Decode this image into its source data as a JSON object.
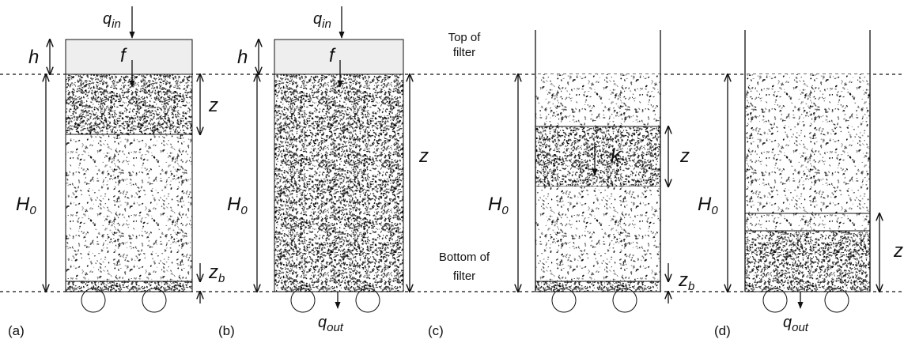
{
  "panels": [
    {
      "label": "(a)",
      "q_in": {
        "base": "q",
        "sub": "in"
      },
      "h": "h",
      "f": "f",
      "z": "z",
      "H0": {
        "base": "H",
        "sub": "0"
      },
      "z_b": {
        "base": "z",
        "sub": "b"
      }
    },
    {
      "label": "(b)",
      "q_in": {
        "base": "q",
        "sub": "in"
      },
      "h": "h",
      "f": "f",
      "z": "z",
      "H0": {
        "base": "H",
        "sub": "0"
      },
      "q_out": {
        "base": "q",
        "sub": "out"
      }
    },
    {
      "label": "(c)",
      "k": "k",
      "z": "z",
      "H0": {
        "base": "H",
        "sub": "0"
      },
      "z_b": {
        "base": "z",
        "sub": "b"
      }
    },
    {
      "label": "(d)",
      "z": "z",
      "H0": {
        "base": "H",
        "sub": "0"
      },
      "q_out": {
        "base": "q",
        "sub": "out"
      }
    }
  ],
  "top_note": [
    "Top of",
    "filter"
  ],
  "bottom_note": [
    "Bottom of",
    "filter"
  ]
}
